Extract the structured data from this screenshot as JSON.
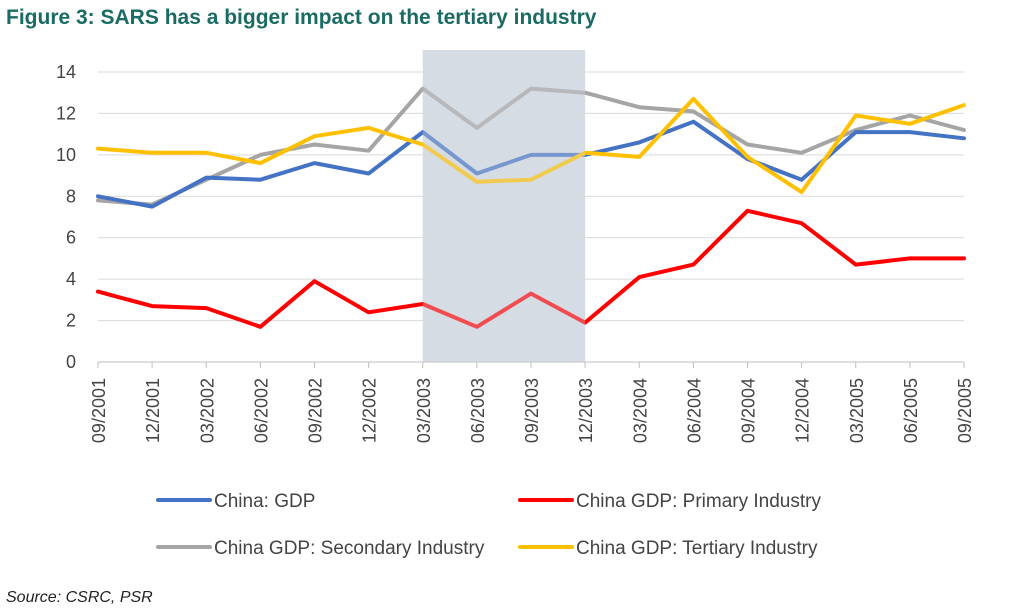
{
  "title": "Figure 3: SARS has a bigger impact on the tertiary industry",
  "source": "Source: CSRC, PSR",
  "chart_data": {
    "type": "line",
    "title": "Figure 3: SARS has a bigger impact on the tertiary industry",
    "x": [
      "09/2001",
      "12/2001",
      "03/2002",
      "06/2002",
      "09/2002",
      "12/2002",
      "03/2003",
      "06/2003",
      "09/2003",
      "12/2003",
      "03/2004",
      "06/2004",
      "09/2004",
      "12/2004",
      "03/2005",
      "06/2005",
      "09/2005"
    ],
    "ylim": [
      0,
      14
    ],
    "yticks": [
      "0",
      "2",
      "4",
      "6",
      "8",
      "10",
      "12",
      "14"
    ],
    "grid": true,
    "legend_position": "bottom",
    "shaded_region": {
      "from": "03/2003",
      "to": "12/2003",
      "color": "#d6dce4"
    },
    "series": [
      {
        "name": "China: GDP",
        "color": "#4472c4",
        "values": [
          8.0,
          7.5,
          8.9,
          8.8,
          9.6,
          9.1,
          11.1,
          9.1,
          10.0,
          10.0,
          10.6,
          11.6,
          9.8,
          8.8,
          11.1,
          11.1,
          10.8
        ]
      },
      {
        "name": "China GDP: Primary Industry",
        "color": "#ff0000",
        "values": [
          3.4,
          2.7,
          2.6,
          1.7,
          3.9,
          2.4,
          2.8,
          1.7,
          3.3,
          1.9,
          4.1,
          4.7,
          7.3,
          6.7,
          4.7,
          5.0,
          5.0
        ]
      },
      {
        "name": "China GDP: Secondary Industry",
        "color": "#a5a5a5",
        "values": [
          7.8,
          7.6,
          8.8,
          10.0,
          10.5,
          10.2,
          13.2,
          11.3,
          13.2,
          13.0,
          12.3,
          12.1,
          10.5,
          10.1,
          11.2,
          11.9,
          11.2
        ]
      },
      {
        "name": "China GDP: Tertiary Industry",
        "color": "#ffc000",
        "values": [
          10.3,
          10.1,
          10.1,
          9.6,
          10.9,
          11.3,
          10.5,
          8.7,
          8.8,
          10.1,
          9.9,
          12.7,
          9.9,
          8.2,
          11.9,
          11.5,
          12.4
        ]
      }
    ]
  }
}
